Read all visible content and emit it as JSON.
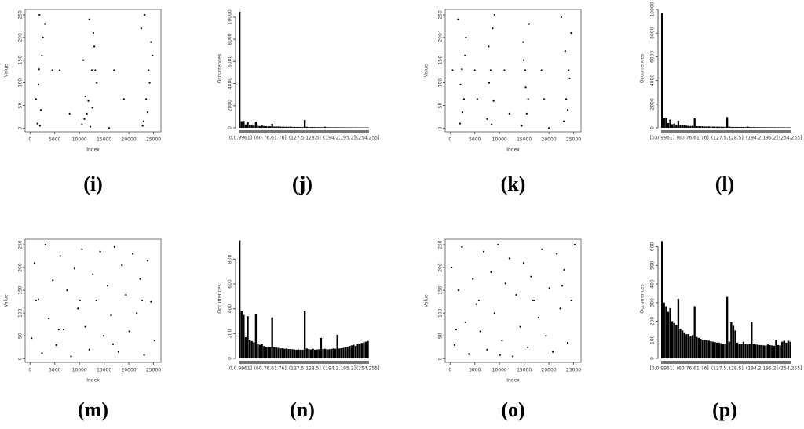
{
  "chart_data": [
    {
      "type": "scatter",
      "caption": "(i)",
      "x_label": "Index",
      "y_label": "Value",
      "xlim": [
        -1000,
        26500
      ],
      "ylim": [
        -8,
        262
      ],
      "xticks": [
        0,
        5000,
        10000,
        15000,
        20000,
        25000
      ],
      "yticks": [
        0,
        50,
        100,
        150,
        200,
        250
      ],
      "color": "#000000",
      "x": [
        1500,
        2200,
        1800,
        2600,
        1200,
        3000,
        2000,
        1700,
        2400,
        1900,
        11000,
        12500,
        11800,
        13000,
        10500,
        12000,
        13500,
        11500,
        12800,
        10800,
        12200,
        11200,
        13200,
        12600,
        23000,
        24000,
        23500,
        24500,
        22500,
        23800,
        24200,
        23200,
        22800,
        24800,
        6000,
        17000,
        19000,
        8000,
        16000,
        4500
      ],
      "y": [
        10,
        40,
        130,
        200,
        64,
        230,
        5,
        96,
        160,
        250,
        20,
        128,
        60,
        180,
        8,
        240,
        100,
        32,
        210,
        150,
        3,
        70,
        128,
        45,
        15,
        128,
        64,
        190,
        220,
        35,
        100,
        250,
        5,
        160,
        128,
        128,
        64,
        32,
        0,
        128
      ]
    },
    {
      "type": "histogram",
      "caption": "(j)",
      "y_label": "Occurrences",
      "ylim": [
        0,
        10700
      ],
      "yticks": [
        0,
        2000,
        4000,
        6000,
        8000,
        10000
      ],
      "color": "#000000",
      "categories": [
        "[0,0.9961]",
        null,
        null,
        null,
        null,
        null,
        null,
        null,
        null,
        null,
        null,
        null,
        null,
        null,
        null,
        "(60.76,61.76]",
        null,
        null,
        null,
        null,
        null,
        null,
        null,
        null,
        null,
        null,
        null,
        null,
        null,
        null,
        null,
        null,
        "(127.5,128.5]",
        null,
        null,
        null,
        null,
        null,
        null,
        null,
        null,
        null,
        null,
        null,
        null,
        null,
        null,
        null,
        null,
        "(194.2,195.2]",
        null,
        null,
        null,
        null,
        null,
        null,
        null,
        null,
        null,
        null,
        null,
        null,
        null,
        "(254,255]"
      ],
      "values": [
        10500,
        600,
        620,
        300,
        500,
        250,
        280,
        200,
        550,
        180,
        150,
        200,
        160,
        140,
        120,
        130,
        350,
        110,
        100,
        120,
        100,
        90,
        95,
        90,
        85,
        100,
        80,
        80,
        75,
        80,
        70,
        70,
        700,
        90,
        65,
        60,
        70,
        60,
        55,
        60,
        55,
        50,
        90,
        50,
        50,
        48,
        45,
        50,
        45,
        45,
        40,
        45,
        40,
        40,
        38,
        40,
        36,
        38,
        35,
        35,
        34,
        35,
        33,
        32
      ]
    },
    {
      "type": "scatter",
      "caption": "(k)",
      "x_label": "Index",
      "y_label": "Value",
      "xlim": [
        -1000,
        26500
      ],
      "ylim": [
        -8,
        262
      ],
      "xticks": [
        0,
        5000,
        10000,
        15000,
        20000,
        25000
      ],
      "yticks": [
        0,
        50,
        100,
        150,
        200,
        250
      ],
      "color": "#000000",
      "x": [
        2000,
        2800,
        2400,
        3200,
        1600,
        2500,
        2100,
        3000,
        7500,
        8200,
        8800,
        7800,
        9000,
        8400,
        7900,
        8600,
        14500,
        15200,
        15800,
        14800,
        16000,
        15500,
        14900,
        15300,
        23000,
        24000,
        23500,
        24500,
        22500,
        23800,
        24200,
        23300,
        5000,
        11000,
        19000,
        12000,
        20000,
        500,
        5500,
        18500
      ],
      "y": [
        10,
        64,
        130,
        200,
        240,
        35,
        96,
        160,
        20,
        128,
        60,
        180,
        250,
        8,
        100,
        220,
        5,
        128,
        64,
        190,
        230,
        32,
        150,
        90,
        15,
        128,
        64,
        210,
        245,
        40,
        110,
        170,
        128,
        128,
        64,
        32,
        0,
        128,
        64,
        128
      ]
    },
    {
      "type": "histogram",
      "caption": "(l)",
      "y_label": "Occurrences",
      "ylim": [
        0,
        10000
      ],
      "yticks": [
        0,
        2000,
        4000,
        6000,
        8000,
        10000
      ],
      "color": "#000000",
      "categories": [
        "[0,0.9961]",
        null,
        null,
        null,
        null,
        null,
        null,
        null,
        null,
        null,
        null,
        null,
        null,
        null,
        null,
        "(60.76,61.76]",
        null,
        null,
        null,
        null,
        null,
        null,
        null,
        null,
        null,
        null,
        null,
        null,
        null,
        null,
        null,
        null,
        "(127.5,128.5]",
        null,
        null,
        null,
        null,
        null,
        null,
        null,
        null,
        null,
        null,
        null,
        null,
        null,
        null,
        null,
        null,
        "(194.2,195.2]",
        null,
        null,
        null,
        null,
        null,
        null,
        null,
        null,
        null,
        null,
        null,
        null,
        null,
        "(254,255]"
      ],
      "values": [
        9700,
        800,
        820,
        400,
        700,
        300,
        350,
        250,
        600,
        220,
        200,
        240,
        180,
        160,
        150,
        160,
        800,
        140,
        130,
        120,
        130,
        110,
        100,
        110,
        100,
        95,
        90,
        90,
        85,
        85,
        80,
        80,
        900,
        100,
        75,
        72,
        70,
        68,
        65,
        70,
        62,
        60,
        100,
        58,
        55,
        55,
        52,
        55,
        50,
        50,
        48,
        48,
        45,
        46,
        44,
        44,
        42,
        42,
        40,
        40,
        40,
        38,
        38,
        36
      ]
    },
    {
      "type": "scatter",
      "caption": "(m)",
      "x_label": "Index",
      "y_label": "Value",
      "xlim": [
        -1000,
        26500
      ],
      "ylim": [
        -8,
        262
      ],
      "xticks": [
        0,
        5000,
        10000,
        15000,
        20000,
        25000
      ],
      "yticks": [
        0,
        50,
        100,
        150,
        200,
        250
      ],
      "color": "#000000",
      "x": [
        300,
        900,
        1700,
        2400,
        3100,
        3800,
        4600,
        5300,
        6100,
        6800,
        7500,
        8300,
        9000,
        9700,
        10500,
        11200,
        12000,
        12700,
        13400,
        14200,
        14900,
        15700,
        16400,
        17100,
        17900,
        18600,
        19400,
        20100,
        20800,
        21600,
        22300,
        23100,
        23800,
        24500,
        25200,
        1200,
        5800,
        10100,
        16800,
        22700
      ],
      "y": [
        45,
        210,
        130,
        12,
        250,
        88,
        172,
        30,
        225,
        64,
        150,
        5,
        198,
        110,
        240,
        70,
        20,
        185,
        128,
        235,
        50,
        160,
        95,
        245,
        15,
        205,
        140,
        60,
        230,
        100,
        175,
        8,
        215,
        125,
        40,
        128,
        64,
        128,
        32,
        128
      ]
    },
    {
      "type": "histogram",
      "caption": "(n)",
      "y_label": "Occurrences",
      "ylim": [
        0,
        960
      ],
      "yticks": [
        0,
        200,
        400,
        600,
        800
      ],
      "color": "#000000",
      "categories": [
        "[0,0.9961]",
        null,
        null,
        null,
        null,
        null,
        null,
        null,
        null,
        null,
        null,
        null,
        null,
        null,
        null,
        "(60.76,61.76]",
        null,
        null,
        null,
        null,
        null,
        null,
        null,
        null,
        null,
        null,
        null,
        null,
        null,
        null,
        null,
        null,
        "(127.5,128.5]",
        null,
        null,
        null,
        null,
        null,
        null,
        null,
        null,
        null,
        null,
        null,
        null,
        null,
        null,
        null,
        null,
        "(194.2,195.2]",
        null,
        null,
        null,
        null,
        null,
        null,
        null,
        null,
        null,
        null,
        null,
        null,
        null,
        "(254,255]"
      ],
      "values": [
        950,
        380,
        350,
        170,
        340,
        150,
        140,
        130,
        360,
        120,
        110,
        115,
        100,
        95,
        95,
        90,
        330,
        90,
        88,
        85,
        80,
        82,
        78,
        80,
        76,
        75,
        74,
        72,
        70,
        72,
        70,
        70,
        380,
        80,
        75,
        72,
        78,
        70,
        72,
        74,
        165,
        75,
        78,
        72,
        74,
        76,
        80,
        78,
        190,
        80,
        82,
        85,
        90,
        95,
        100,
        105,
        110,
        100,
        115,
        120,
        125,
        130,
        135,
        140
      ]
    },
    {
      "type": "scatter",
      "caption": "(o)",
      "x_label": "Index",
      "y_label": "Value",
      "xlim": [
        -1000,
        26500
      ],
      "ylim": [
        -8,
        262
      ],
      "xticks": [
        0,
        5000,
        10000,
        15000,
        20000,
        25000
      ],
      "yticks": [
        0,
        50,
        100,
        150,
        200,
        250
      ],
      "color": "#000000",
      "x": [
        300,
        900,
        1700,
        2400,
        3100,
        3800,
        4600,
        5300,
        6100,
        6800,
        7500,
        8300,
        9000,
        9700,
        10500,
        11200,
        12000,
        12700,
        13400,
        14200,
        14900,
        15700,
        16400,
        17100,
        17900,
        18600,
        19400,
        20100,
        20800,
        21600,
        22300,
        23100,
        23800,
        24500,
        25200,
        1200,
        5800,
        10100,
        16800,
        22700
      ],
      "y": [
        200,
        30,
        150,
        245,
        80,
        10,
        175,
        120,
        60,
        235,
        20,
        190,
        100,
        250,
        40,
        165,
        220,
        5,
        140,
        70,
        210,
        25,
        180,
        128,
        90,
        240,
        50,
        155,
        15,
        230,
        110,
        195,
        35,
        128,
        250,
        64,
        128,
        8,
        128,
        160
      ]
    },
    {
      "type": "histogram",
      "caption": "(p)",
      "y_label": "Occurrences",
      "ylim": [
        0,
        640
      ],
      "yticks": [
        0,
        100,
        200,
        300,
        400,
        500,
        600
      ],
      "color": "#000000",
      "categories": [
        "[0,0.9961]",
        null,
        null,
        null,
        null,
        null,
        null,
        null,
        null,
        null,
        null,
        null,
        null,
        null,
        null,
        "(60.76,61.76]",
        null,
        null,
        null,
        null,
        null,
        null,
        null,
        null,
        null,
        null,
        null,
        null,
        null,
        null,
        null,
        null,
        "(127.5,128.5]",
        null,
        null,
        null,
        null,
        null,
        null,
        null,
        null,
        null,
        null,
        null,
        null,
        null,
        null,
        null,
        null,
        "(194.2,195.2]",
        null,
        null,
        null,
        null,
        null,
        null,
        null,
        null,
        null,
        null,
        null,
        null,
        null,
        "(254,255]"
      ],
      "values": [
        630,
        300,
        280,
        250,
        270,
        200,
        190,
        180,
        320,
        160,
        150,
        140,
        130,
        130,
        120,
        125,
        280,
        115,
        110,
        105,
        100,
        100,
        98,
        95,
        92,
        90,
        88,
        85,
        85,
        82,
        80,
        80,
        330,
        90,
        195,
        175,
        150,
        85,
        80,
        78,
        90,
        76,
        75,
        80,
        195,
        78,
        75,
        74,
        72,
        72,
        70,
        70,
        75,
        72,
        70,
        68,
        100,
        72,
        70,
        90,
        95,
        85,
        95,
        90
      ]
    }
  ]
}
